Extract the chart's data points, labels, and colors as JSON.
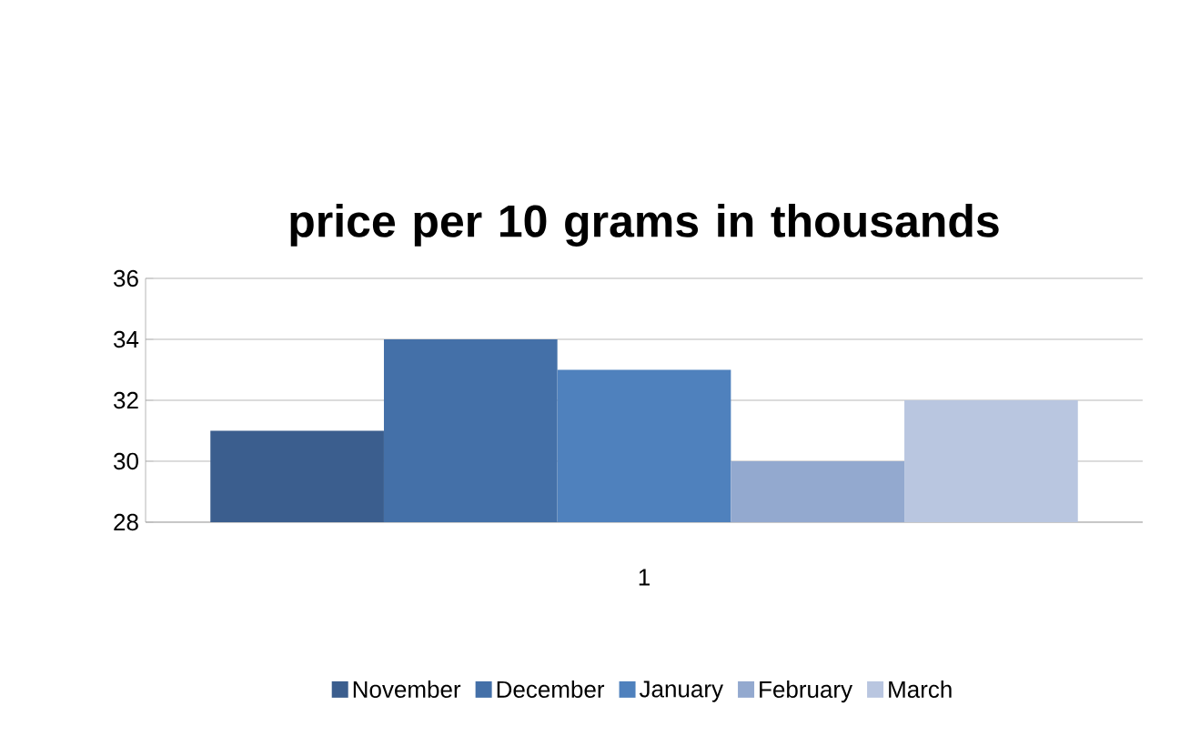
{
  "chart_data": {
    "type": "bar",
    "title": "price per 10 grams in thousands",
    "categories": [
      "1"
    ],
    "series": [
      {
        "name": "November",
        "color": "#3b5e8e",
        "values": [
          31
        ]
      },
      {
        "name": "December",
        "color": "#4470a8",
        "values": [
          34
        ]
      },
      {
        "name": "January",
        "color": "#4f81bd",
        "values": [
          33
        ]
      },
      {
        "name": "February",
        "color": "#93a9cf",
        "values": [
          30
        ]
      },
      {
        "name": "March",
        "color": "#b9c6e0",
        "values": [
          32
        ]
      }
    ],
    "ylim": [
      28,
      36
    ],
    "yticks": [
      28,
      30,
      32,
      34,
      36
    ],
    "grid": "y",
    "legend": "bottom"
  }
}
